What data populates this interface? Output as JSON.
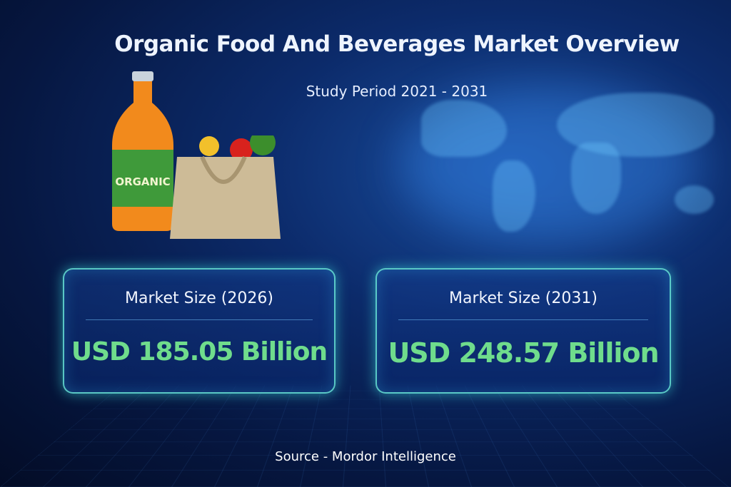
{
  "header": {
    "title": "Organic Food And Beverages Market Overview",
    "subtitle": "Study Period 2021 - 2031"
  },
  "illustration": {
    "bottle_label": "ORGANIC",
    "icons": [
      "juice-bottle",
      "grocery-bag",
      "world-map"
    ]
  },
  "cards": [
    {
      "label": "Market Size (2026)",
      "value": "USD 185.05 Billion"
    },
    {
      "label": "Market Size (2031)",
      "value": "USD 248.57 Billion"
    }
  ],
  "footer": {
    "source": "Source  - Mordor Intelligence"
  },
  "colors": {
    "background": "#0c2b6b",
    "value_green": "#6fdc8c",
    "card_border": "#6ef0dc"
  }
}
